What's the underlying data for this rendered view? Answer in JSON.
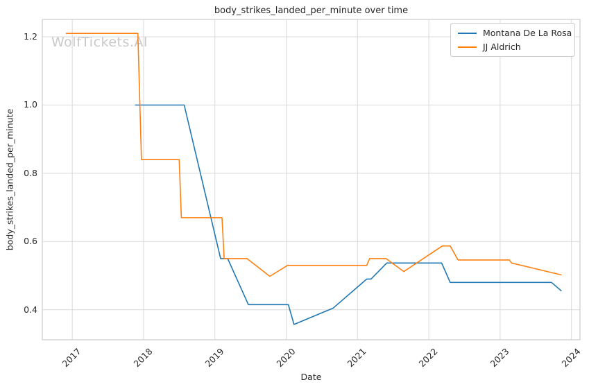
{
  "watermark": "WolfTickets.AI",
  "chart_data": {
    "type": "line",
    "title": "body_strikes_landed_per_minute over time",
    "xlabel": "Date",
    "ylabel": "body_strikes_landed_per_minute",
    "xlim": [
      2016.58,
      2024.12
    ],
    "ylim": [
      0.312,
      1.251
    ],
    "grid": true,
    "legend_position": "upper-right",
    "colors": {
      "grid": "#d9d9d9",
      "spine": "#cccccc",
      "text": "#262626",
      "watermark": "#c9c9c9",
      "background": "#ffffff"
    },
    "x_ticks": [
      {
        "value": 2017,
        "label": "2017"
      },
      {
        "value": 2018,
        "label": "2018"
      },
      {
        "value": 2019,
        "label": "2019"
      },
      {
        "value": 2020,
        "label": "2020"
      },
      {
        "value": 2021,
        "label": "2021"
      },
      {
        "value": 2022,
        "label": "2022"
      },
      {
        "value": 2023,
        "label": "2023"
      },
      {
        "value": 2024,
        "label": "2024"
      }
    ],
    "y_ticks": [
      {
        "value": 0.4,
        "label": "0.4"
      },
      {
        "value": 0.6,
        "label": "0.6"
      },
      {
        "value": 0.8,
        "label": "0.8"
      },
      {
        "value": 1.0,
        "label": "1.0"
      },
      {
        "value": 1.2,
        "label": "1.2"
      }
    ],
    "series": [
      {
        "name": "Montana De La Rosa",
        "color": "#1f77b4",
        "x": [
          2017.88,
          2018.57,
          2019.08,
          2019.18,
          2019.47,
          2020.03,
          2020.11,
          2020.66,
          2021.13,
          2021.19,
          2021.41,
          2022.18,
          2022.3,
          2023.72,
          2023.86
        ],
        "y": [
          1.0,
          1.0,
          0.55,
          0.55,
          0.415,
          0.415,
          0.357,
          0.405,
          0.49,
          0.49,
          0.537,
          0.537,
          0.48,
          0.48,
          0.455
        ]
      },
      {
        "name": "JJ Aldrich",
        "color": "#ff7f0e",
        "x": [
          2016.91,
          2017.92,
          2017.97,
          2018.5,
          2018.53,
          2019.1,
          2019.13,
          2019.45,
          2019.77,
          2020.02,
          2021.13,
          2021.17,
          2021.4,
          2021.65,
          2022.19,
          2022.3,
          2022.41,
          2023.13,
          2023.16,
          2023.86
        ],
        "y": [
          1.21,
          1.21,
          0.84,
          0.84,
          0.67,
          0.67,
          0.55,
          0.55,
          0.498,
          0.53,
          0.53,
          0.55,
          0.55,
          0.512,
          0.587,
          0.587,
          0.546,
          0.546,
          0.537,
          0.502
        ]
      }
    ]
  }
}
